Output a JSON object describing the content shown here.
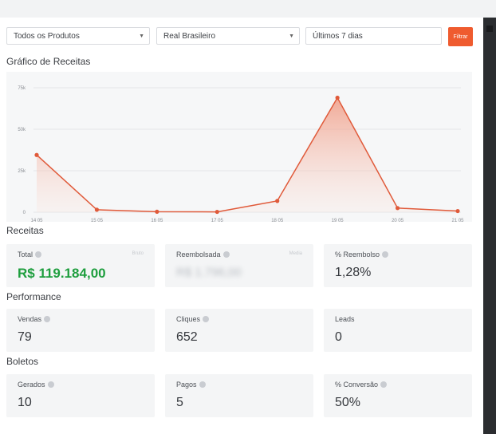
{
  "filters": {
    "product": "Todos os Produtos",
    "currency": "Real Brasileiro",
    "period": "Últimos 7 dias",
    "button": "Filtrar"
  },
  "chart_title": "Gráfico de Receitas",
  "chart_data": {
    "type": "area",
    "categories": [
      "14 05",
      "15 05",
      "16 05",
      "17 05",
      "18 05",
      "19 05",
      "20 05",
      "21 05"
    ],
    "values": [
      34500,
      1500,
      300,
      200,
      6800,
      69000,
      2500,
      700
    ],
    "yticks": [
      "0",
      "25k",
      "50k",
      "75k"
    ],
    "ylim": [
      0,
      75000
    ],
    "xlabel": "",
    "ylabel": "",
    "grid": true,
    "line_color": "#e05a3a",
    "fill_color": "#f6c8bb"
  },
  "sections": {
    "receitas": "Receitas",
    "performance": "Performance",
    "boletos": "Boletos"
  },
  "cards": {
    "total": {
      "label": "Total",
      "aside": "Bruto",
      "value": "R$ 119.184,00"
    },
    "reembolsada": {
      "label": "Reembolsada",
      "aside": "Media",
      "value": "R$ 1.796,00"
    },
    "pct_reembolso": {
      "label": "% Reembolso",
      "value": "1,28%"
    },
    "vendas": {
      "label": "Vendas",
      "value": "79"
    },
    "cliques": {
      "label": "Cliques",
      "value": "652"
    },
    "leads": {
      "label": "Leads",
      "value": "0"
    },
    "gerados": {
      "label": "Gerados",
      "value": "10"
    },
    "pagos": {
      "label": "Pagos",
      "value": "5"
    },
    "pct_conversao": {
      "label": "% Conversão",
      "value": "50%"
    }
  },
  "colors": {
    "accent": "#ef5b2f",
    "positive": "#1e9e3e"
  }
}
